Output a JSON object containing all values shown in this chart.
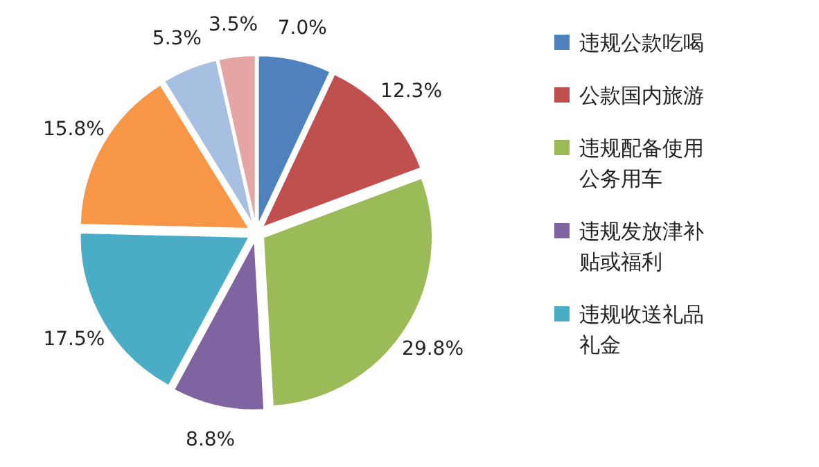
{
  "chart_data": {
    "type": "pie",
    "categories": [
      "违规公款吃喝",
      "公款国内旅游",
      "违规配备使用公务用车",
      "违规发放津补贴或福利",
      "违规收送礼品礼金",
      null,
      null,
      null
    ],
    "values": [
      7.0,
      12.3,
      29.8,
      8.8,
      17.5,
      15.8,
      5.3,
      3.5
    ],
    "colors": [
      "#4f81bd",
      "#c0504d",
      "#9bbb59",
      "#8064a2",
      "#4bacc6",
      "#f79646",
      "#a7bfe0",
      "#e6a5a5"
    ],
    "value_labels": [
      "7.0%",
      "12.3%",
      "29.8%",
      "8.8%",
      "17.5%",
      "15.8%",
      "5.3%",
      "3.5%"
    ],
    "legend": "right"
  }
}
